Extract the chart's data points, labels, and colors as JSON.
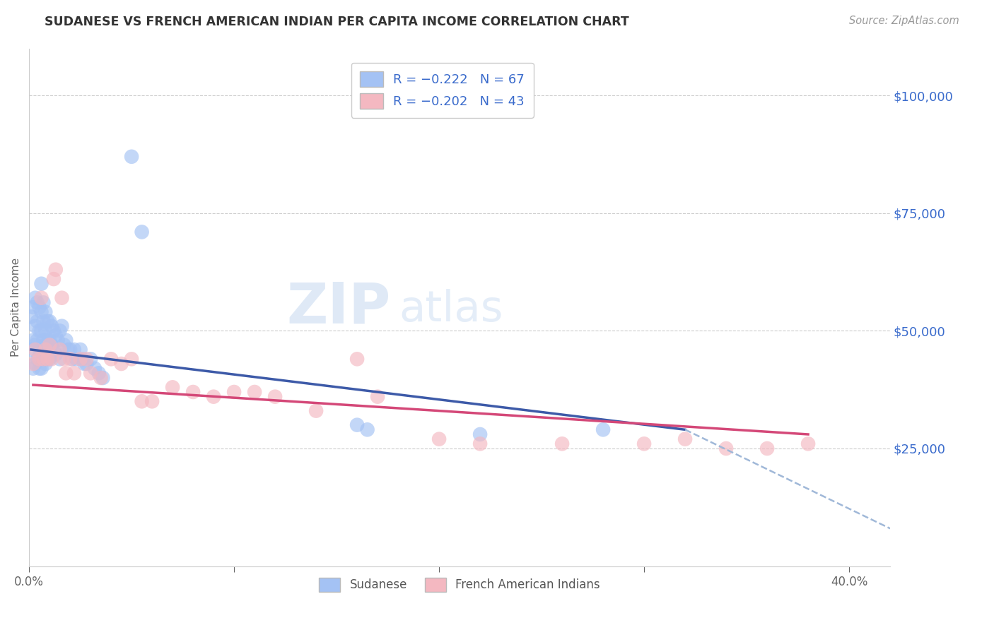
{
  "title": "SUDANESE VS FRENCH AMERICAN INDIAN PER CAPITA INCOME CORRELATION CHART",
  "source": "Source: ZipAtlas.com",
  "ylabel": "Per Capita Income",
  "ytick_labels": [
    "$25,000",
    "$50,000",
    "$75,000",
    "$100,000"
  ],
  "ytick_values": [
    25000,
    50000,
    75000,
    100000
  ],
  "xlim": [
    0.0,
    0.42
  ],
  "ylim": [
    0,
    110000
  ],
  "blue_color": "#a4c2f4",
  "pink_color": "#f4b8c1",
  "blue_line_color": "#3d5aa8",
  "pink_line_color": "#d44878",
  "dashed_line_color": "#a0b8d8",
  "sudanese_x": [
    0.001,
    0.001,
    0.002,
    0.002,
    0.002,
    0.003,
    0.003,
    0.003,
    0.003,
    0.004,
    0.004,
    0.004,
    0.004,
    0.005,
    0.005,
    0.005,
    0.005,
    0.006,
    0.006,
    0.006,
    0.006,
    0.006,
    0.007,
    0.007,
    0.007,
    0.007,
    0.008,
    0.008,
    0.008,
    0.008,
    0.009,
    0.009,
    0.009,
    0.01,
    0.01,
    0.01,
    0.011,
    0.011,
    0.012,
    0.012,
    0.013,
    0.013,
    0.014,
    0.015,
    0.015,
    0.016,
    0.017,
    0.018,
    0.019,
    0.02,
    0.021,
    0.022,
    0.023,
    0.025,
    0.026,
    0.027,
    0.028,
    0.03,
    0.032,
    0.034,
    0.036,
    0.05,
    0.055,
    0.16,
    0.165,
    0.22,
    0.28
  ],
  "sudanese_y": [
    53000,
    46000,
    55000,
    48000,
    42000,
    57000,
    51000,
    47000,
    43000,
    56000,
    52000,
    48000,
    44000,
    55000,
    50000,
    46000,
    42000,
    60000,
    54000,
    50000,
    46000,
    42000,
    56000,
    52000,
    48000,
    44000,
    54000,
    50000,
    47000,
    43000,
    52000,
    48000,
    44000,
    52000,
    48000,
    44000,
    51000,
    47000,
    50000,
    46000,
    49000,
    45000,
    48000,
    50000,
    44000,
    51000,
    47000,
    48000,
    46000,
    46000,
    44000,
    46000,
    44000,
    46000,
    44000,
    43000,
    43000,
    44000,
    42000,
    41000,
    40000,
    87000,
    71000,
    30000,
    29000,
    28000,
    29000
  ],
  "french_x": [
    0.002,
    0.003,
    0.005,
    0.006,
    0.007,
    0.008,
    0.009,
    0.01,
    0.011,
    0.012,
    0.013,
    0.015,
    0.016,
    0.017,
    0.018,
    0.02,
    0.022,
    0.025,
    0.028,
    0.03,
    0.035,
    0.04,
    0.045,
    0.05,
    0.055,
    0.06,
    0.07,
    0.08,
    0.09,
    0.1,
    0.11,
    0.12,
    0.14,
    0.16,
    0.17,
    0.2,
    0.22,
    0.26,
    0.3,
    0.32,
    0.34,
    0.36,
    0.38
  ],
  "french_y": [
    43000,
    46000,
    44000,
    57000,
    44000,
    46000,
    44000,
    47000,
    44000,
    61000,
    63000,
    46000,
    57000,
    44000,
    41000,
    44000,
    41000,
    44000,
    44000,
    41000,
    40000,
    44000,
    43000,
    44000,
    35000,
    35000,
    38000,
    37000,
    36000,
    37000,
    37000,
    36000,
    33000,
    44000,
    36000,
    27000,
    26000,
    26000,
    26000,
    27000,
    25000,
    25000,
    26000
  ],
  "blue_line_x": [
    0.001,
    0.32
  ],
  "blue_line_y": [
    46000,
    29000
  ],
  "pink_line_x": [
    0.002,
    0.38
  ],
  "pink_line_y": [
    38500,
    28000
  ],
  "dash_line_x": [
    0.32,
    0.42
  ],
  "dash_line_y": [
    29000,
    8000
  ]
}
